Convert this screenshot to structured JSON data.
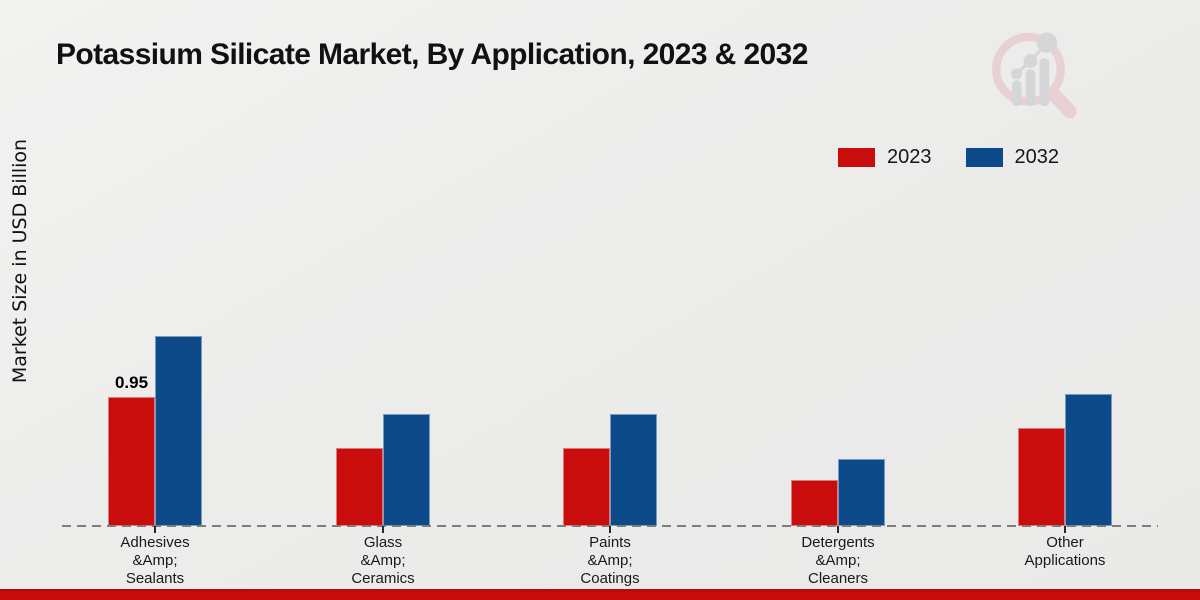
{
  "page": {
    "title": "Potassium Silicate Market, By Application, 2023 & 2032"
  },
  "ylabel": "Market Size in USD Billion",
  "legend": {
    "items": [
      {
        "label": "2023",
        "color": "#c90c0c"
      },
      {
        "label": "2032",
        "color": "#0d4a8a"
      }
    ]
  },
  "watermark": {
    "name": "magnifier-bar-chart-logo"
  },
  "footer": {
    "accent_color": "#c90c0c"
  },
  "chart_data": {
    "type": "bar",
    "title": "Potassium Silicate Market, By Application, 2023 & 2032",
    "xlabel": "",
    "ylabel": "Market Size in USD Billion",
    "categories": [
      "Adhesives &Amp; Sealants",
      "Glass &Amp; Ceramics",
      "Paints &Amp; Coatings",
      "Detergents &Amp; Cleaners",
      "Other Applications"
    ],
    "category_lines": [
      [
        "Adhesives",
        "&Amp;",
        "Sealants"
      ],
      [
        "Glass",
        "&Amp;",
        "Ceramics"
      ],
      [
        "Paints",
        "&Amp;",
        "Coatings"
      ],
      [
        "Detergents",
        "&Amp;",
        "Cleaners"
      ],
      [
        "Other",
        "Applications"
      ]
    ],
    "series": [
      {
        "name": "2023",
        "color": "#c90c0c",
        "values": [
          0.95,
          0.57,
          0.57,
          0.34,
          0.72
        ]
      },
      {
        "name": "2032",
        "color": "#0d4a8a",
        "values": [
          1.4,
          0.82,
          0.82,
          0.49,
          0.97
        ]
      }
    ],
    "bar_labels": [
      {
        "series_index": 0,
        "category_index": 0,
        "text": "0.95"
      }
    ],
    "ylim": [
      0,
      1.5
    ],
    "grid": false,
    "y_axis_ticks_visible": false,
    "baseline_style": "dashed",
    "legend_position": "upper right"
  }
}
